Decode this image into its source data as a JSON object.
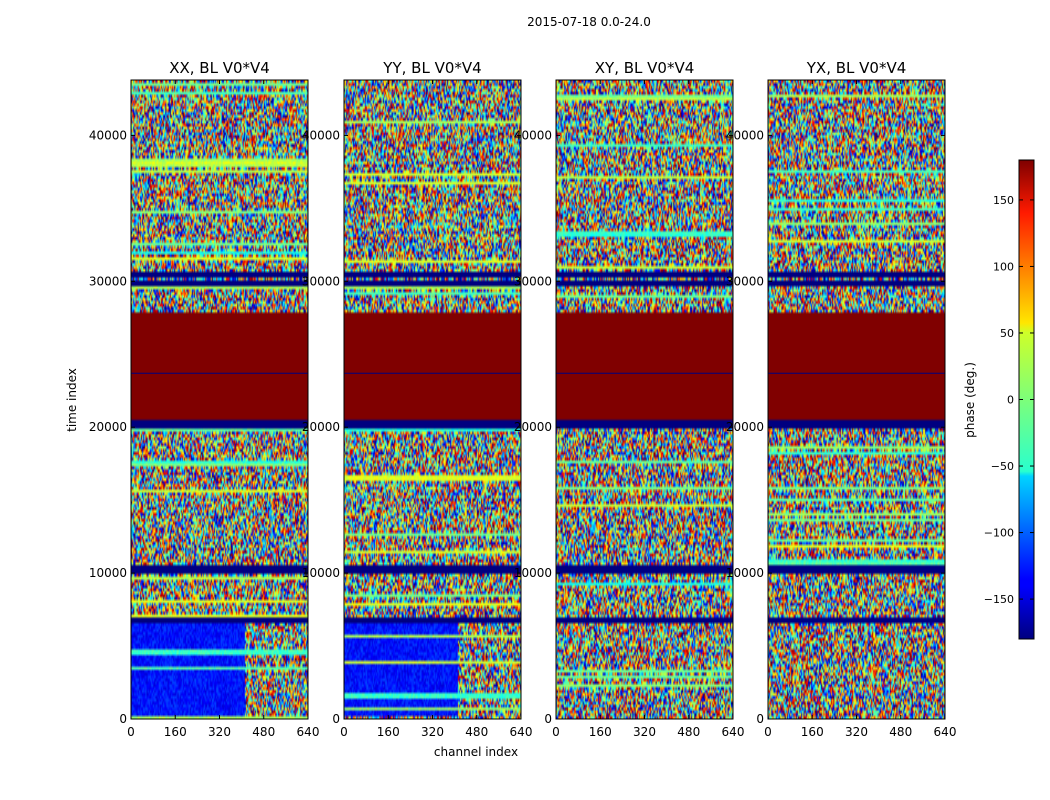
{
  "figure": {
    "suptitle": "2015-07-18 0.0-24.0"
  },
  "chart_data": {
    "type": "heatmap",
    "xlabel": "channel index",
    "ylabel": "time index",
    "xlim": [
      0,
      640
    ],
    "ylim": [
      0,
      43800
    ],
    "xticks": [
      0,
      160,
      320,
      480,
      640
    ],
    "yticks": [
      0,
      10000,
      20000,
      30000,
      40000
    ],
    "colorbar": {
      "label": "phase (deg.)",
      "range": [
        -180,
        180
      ],
      "ticks": [
        -150,
        -100,
        -50,
        0,
        50,
        100,
        150
      ],
      "tick_labels": [
        "−150",
        "−100",
        "−50",
        "0",
        "50",
        "100",
        "150"
      ],
      "colormap": "jet"
    },
    "panels": [
      {
        "title": "XX, BL V0*V4"
      },
      {
        "title": "YY, BL V0*V4"
      },
      {
        "title": "XY, BL V0*V4"
      },
      {
        "title": "YX, BL V0*V4"
      }
    ],
    "flagged_block": {
      "time_range": [
        20500,
        27800
      ],
      "phase_deg": 180
    },
    "dark_bands_time": [
      20200,
      29900,
      30500,
      10300,
      6800
    ]
  }
}
